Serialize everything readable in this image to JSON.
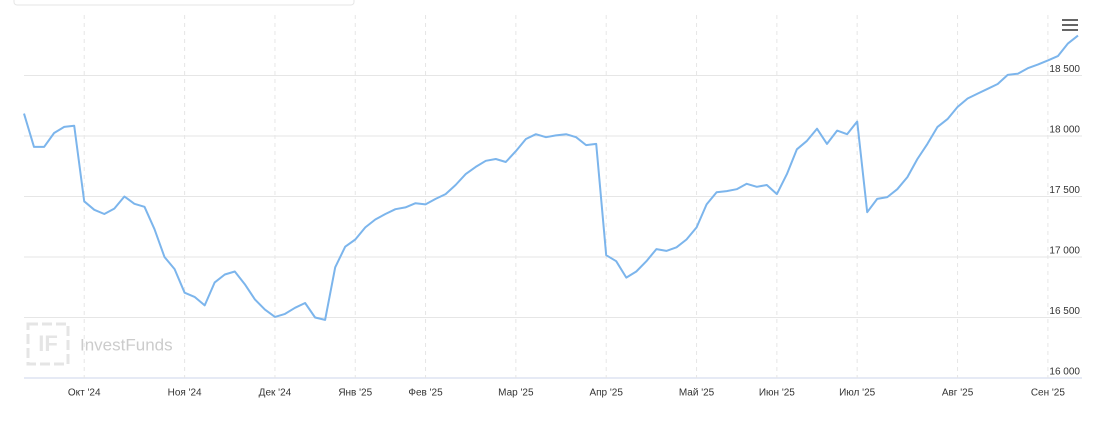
{
  "chart_data": {
    "type": "line",
    "watermark": "InvestFunds",
    "categories": [
      null,
      null,
      null,
      null,
      null,
      null,
      "Окт '24",
      null,
      null,
      null,
      null,
      null,
      null,
      null,
      null,
      null,
      "Ноя '24",
      null,
      null,
      null,
      null,
      null,
      null,
      null,
      null,
      "Дек '24",
      null,
      null,
      null,
      null,
      null,
      null,
      null,
      "Янв '25",
      null,
      null,
      null,
      null,
      null,
      null,
      "Фев '25",
      null,
      null,
      null,
      null,
      null,
      null,
      null,
      null,
      "Мар '25",
      null,
      null,
      null,
      null,
      null,
      null,
      null,
      null,
      "Апр '25",
      null,
      null,
      null,
      null,
      null,
      null,
      null,
      null,
      "Май '25",
      null,
      null,
      null,
      null,
      null,
      null,
      null,
      "Июн '25",
      null,
      null,
      null,
      null,
      null,
      null,
      null,
      "Июл '25",
      null,
      null,
      null,
      null,
      null,
      null,
      null,
      null,
      null,
      "Авг '25",
      null,
      null,
      null,
      null,
      null,
      null,
      null,
      null,
      "Сен '25",
      null,
      null,
      null
    ],
    "values": [
      18185,
      17910,
      17910,
      18025,
      18075,
      18085,
      17460,
      17390,
      17355,
      17400,
      17500,
      17440,
      17415,
      17230,
      17000,
      16900,
      16705,
      16670,
      16600,
      16790,
      16855,
      16880,
      16775,
      16650,
      16565,
      16505,
      16530,
      16580,
      16620,
      16500,
      16480,
      16915,
      17085,
      17145,
      17245,
      17310,
      17355,
      17395,
      17410,
      17445,
      17435,
      17480,
      17520,
      17595,
      17685,
      17745,
      17795,
      17810,
      17785,
      17875,
      17975,
      18015,
      17990,
      18005,
      18015,
      17990,
      17925,
      17935,
      17015,
      16965,
      16830,
      16880,
      16965,
      17065,
      17050,
      17080,
      17145,
      17245,
      17435,
      17535,
      17545,
      17560,
      17605,
      17580,
      17595,
      17520,
      17685,
      17890,
      17960,
      18060,
      17935,
      18045,
      18015,
      18120,
      17370,
      17480,
      17495,
      17560,
      17660,
      17810,
      17935,
      18075,
      18140,
      18240,
      18310,
      18350,
      18390,
      18430,
      18505,
      18515,
      18560,
      18590,
      18625,
      18660,
      18765,
      18830
    ],
    "color": "#7cb5ec",
    "ylim": [
      16000,
      19000
    ],
    "yticks": [
      {
        "value": 16000,
        "label": "16 000"
      },
      {
        "value": 16500,
        "label": "16 500"
      },
      {
        "value": 17000,
        "label": "17 000"
      },
      {
        "value": 17500,
        "label": "17 500"
      },
      {
        "value": 18000,
        "label": "18 000"
      },
      {
        "value": 18500,
        "label": "18 500"
      }
    ],
    "grid": true
  }
}
